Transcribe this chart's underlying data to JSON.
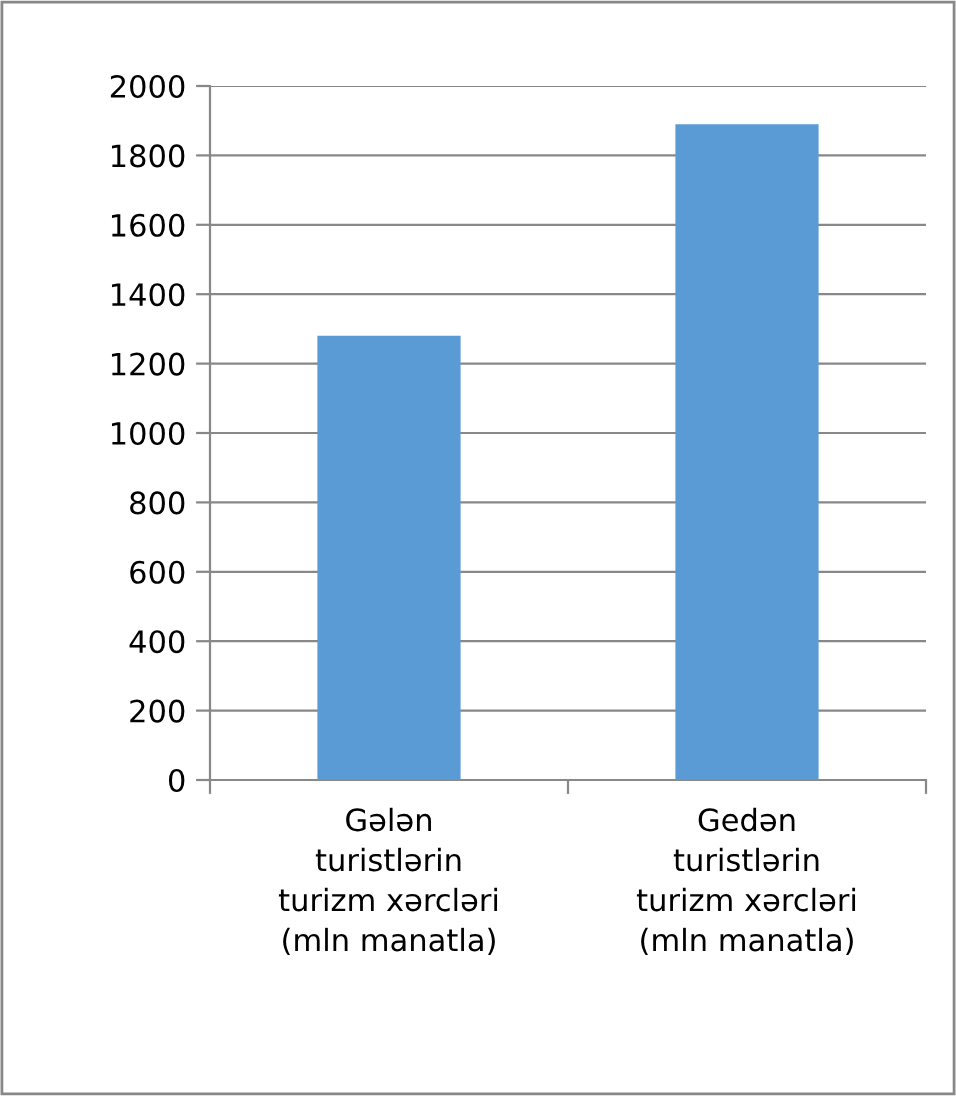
{
  "chart_data": {
    "type": "bar",
    "categories": [
      "Gələn\nturistlərin\nturizm xərcləri\n(mln manatla)",
      "Gedən\nturistlərin\nturizm xərcləri\n(mln manatla)"
    ],
    "values": [
      1280,
      1890
    ],
    "color": "#5b9bd5",
    "ylim": [
      0,
      2000
    ],
    "yticks": [
      0,
      200,
      400,
      600,
      800,
      1000,
      1200,
      1400,
      1600,
      1800,
      2000
    ],
    "grid": "y"
  }
}
